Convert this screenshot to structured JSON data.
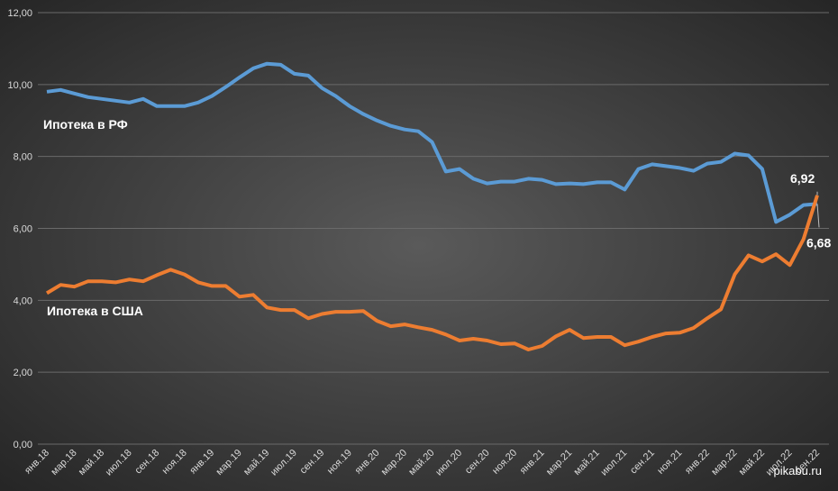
{
  "chart_data": {
    "type": "line",
    "categories": [
      "янв.18",
      null,
      "мар.18",
      null,
      "май.18",
      null,
      "июл.18",
      null,
      "сен.18",
      null,
      "ноя.18",
      null,
      "янв.19",
      null,
      "мар.19",
      null,
      "май.19",
      null,
      "июл.19",
      null,
      "сен.19",
      null,
      "ноя.19",
      null,
      "янв.20",
      null,
      "мар.20",
      null,
      "май.20",
      null,
      "июл.20",
      null,
      "сен.20",
      null,
      "ноя.20",
      null,
      "янв.21",
      null,
      "мар.21",
      null,
      "май.21",
      null,
      "июл.21",
      null,
      "сен.21",
      null,
      "ноя.21",
      null,
      "янв.22",
      null,
      "мар.22",
      null,
      "май.22",
      null,
      "июл.22",
      null,
      "сен.22"
    ],
    "series": [
      {
        "name": "Ипотека в РФ",
        "color": "#5b9bd5",
        "values": [
          9.8,
          9.85,
          9.75,
          9.65,
          9.6,
          9.55,
          9.5,
          9.6,
          9.4,
          9.4,
          9.4,
          9.5,
          9.68,
          9.93,
          10.2,
          10.45,
          10.58,
          10.55,
          10.3,
          10.25,
          9.9,
          9.68,
          9.4,
          9.18,
          9.0,
          8.85,
          8.75,
          8.7,
          8.4,
          7.58,
          7.65,
          7.38,
          7.25,
          7.3,
          7.3,
          7.38,
          7.35,
          7.23,
          7.25,
          7.23,
          7.28,
          7.28,
          7.08,
          7.65,
          7.78,
          7.73,
          7.68,
          7.6,
          7.8,
          7.85,
          8.08,
          8.03,
          7.65,
          6.18,
          6.38,
          6.65,
          6.68
        ],
        "value_labels": [
          null,
          null,
          null,
          null,
          null,
          null,
          null,
          null,
          null,
          null,
          null,
          null,
          null,
          null,
          null,
          null,
          null,
          null,
          null,
          null,
          null,
          null,
          null,
          null,
          null,
          null,
          null,
          null,
          null,
          null,
          null,
          null,
          null,
          null,
          null,
          null,
          null,
          null,
          null,
          null,
          null,
          null,
          null,
          null,
          null,
          null,
          null,
          null,
          null,
          null,
          null,
          null,
          null,
          null,
          null,
          null,
          "6,68"
        ]
      },
      {
        "name": "Ипотека в США",
        "color": "#ed7d31",
        "values": [
          4.2,
          4.43,
          4.38,
          4.53,
          4.53,
          4.5,
          4.58,
          4.53,
          4.7,
          4.85,
          4.72,
          4.5,
          4.4,
          4.4,
          4.1,
          4.15,
          3.8,
          3.73,
          3.73,
          3.5,
          3.62,
          3.68,
          3.68,
          3.7,
          3.43,
          3.28,
          3.33,
          3.25,
          3.18,
          3.05,
          2.88,
          2.93,
          2.88,
          2.78,
          2.8,
          2.63,
          2.73,
          3.0,
          3.18,
          2.95,
          2.98,
          2.98,
          2.75,
          2.85,
          2.98,
          3.08,
          3.1,
          3.23,
          3.5,
          3.75,
          4.72,
          5.25,
          5.08,
          5.28,
          4.98,
          5.7,
          6.92
        ],
        "value_labels": [
          null,
          null,
          null,
          null,
          null,
          null,
          null,
          null,
          null,
          null,
          null,
          null,
          null,
          null,
          null,
          null,
          null,
          null,
          null,
          null,
          null,
          null,
          null,
          null,
          null,
          null,
          null,
          null,
          null,
          null,
          null,
          null,
          null,
          null,
          null,
          null,
          null,
          null,
          null,
          null,
          null,
          null,
          null,
          null,
          null,
          null,
          null,
          null,
          null,
          null,
          null,
          null,
          null,
          null,
          null,
          null,
          "6,92"
        ]
      }
    ],
    "ylim": [
      0,
      12
    ],
    "yticks": [
      {
        "value": 0,
        "label": "0,00"
      },
      {
        "value": 2,
        "label": "2,00"
      },
      {
        "value": 4,
        "label": "4,00"
      },
      {
        "value": 6,
        "label": "6,00"
      },
      {
        "value": 8,
        "label": "8,00"
      },
      {
        "value": 10,
        "label": "10,00"
      },
      {
        "value": 12,
        "label": "12,00"
      }
    ],
    "grid": true,
    "watermark": "pikabu.ru"
  }
}
